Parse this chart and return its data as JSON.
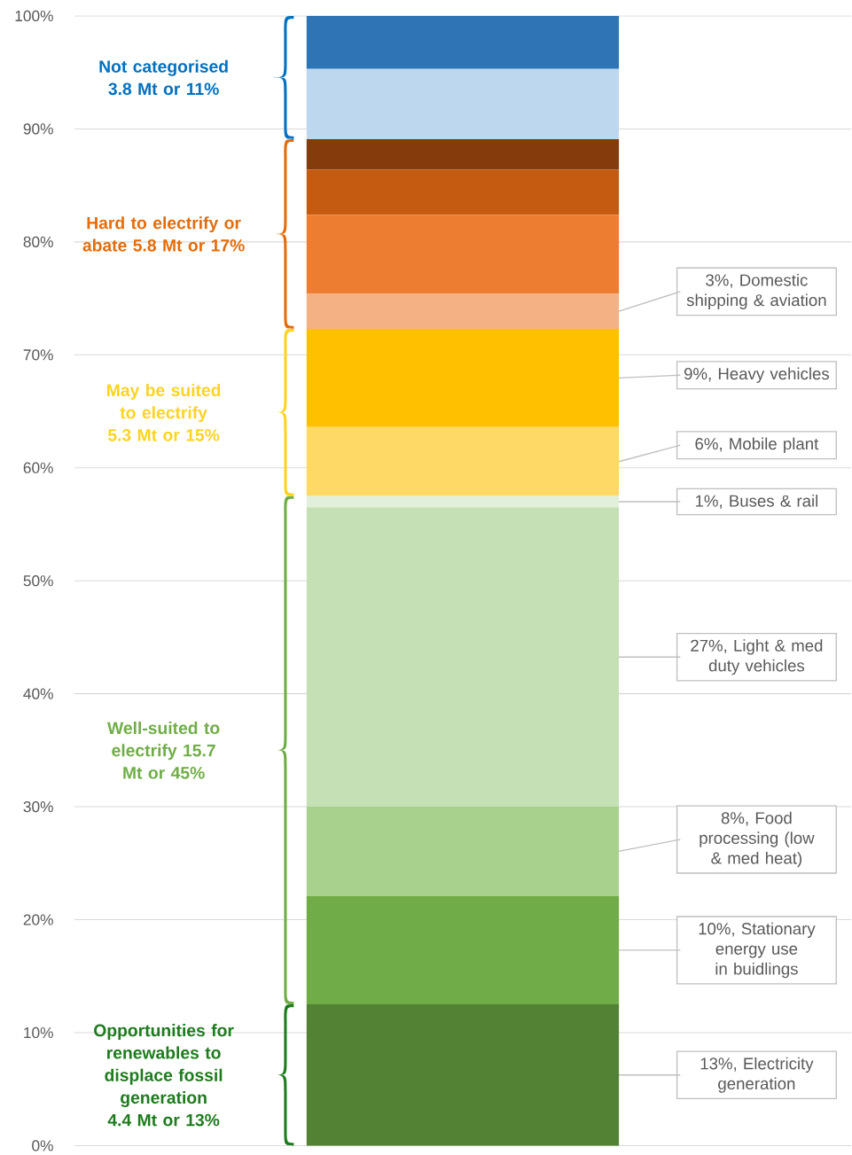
{
  "chart_data": {
    "type": "bar",
    "stacked": true,
    "categories": [
      null
    ],
    "tick_labels": "y",
    "grid": "y",
    "ylim": [
      0,
      100
    ],
    "yticks": [
      {
        "value": 0,
        "label": "0%"
      },
      {
        "value": 10,
        "label": "10%"
      },
      {
        "value": 20,
        "label": "20%"
      },
      {
        "value": 30,
        "label": "30%"
      },
      {
        "value": 40,
        "label": "40%"
      },
      {
        "value": 50,
        "label": "50%"
      },
      {
        "value": 60,
        "label": "60%"
      },
      {
        "value": 70,
        "label": "70%"
      },
      {
        "value": 80,
        "label": "80%"
      },
      {
        "value": 90,
        "label": "90%"
      },
      {
        "value": 100,
        "label": "100%"
      }
    ],
    "series": [
      {
        "name": "13%, Electricity generation",
        "color": "#548235",
        "values": [
          12.5
        ]
      },
      {
        "name": "10%, Stationary energy use in buidlings",
        "color": "#70ad47",
        "values": [
          9.6
        ]
      },
      {
        "name": "8%, Food processing (low & med heat)",
        "color": "#a9d18e",
        "values": [
          7.9
        ]
      },
      {
        "name": "27%, Light & med duty vehicles",
        "color": "#c5e0b4",
        "values": [
          26.5
        ]
      },
      {
        "name": "1%, Buses & rail",
        "color": "#e2efda",
        "values": [
          1.0
        ]
      },
      {
        "name": "6%, Mobile plant",
        "color": "#ffd966",
        "values": [
          6.1
        ]
      },
      {
        "name": "9%, Heavy vehicles",
        "color": "#ffc000",
        "values": [
          8.7
        ]
      },
      {
        "name": "3%, Domestic shipping & aviation",
        "color": "#f4b183",
        "values": [
          3.1
        ]
      },
      {
        "color": "#ed7d31",
        "values": [
          7.0
        ]
      },
      {
        "color": "#c55a11",
        "values": [
          4.0
        ]
      },
      {
        "color": "#843c0c",
        "values": [
          2.7
        ]
      },
      {
        "color": "#bdd7ee",
        "values": [
          6.2
        ]
      },
      {
        "color": "#2e75b6",
        "values": [
          4.7
        ]
      }
    ],
    "annotations": [
      "Opportunities for renewables to displace fossil generation 4.4 Mt or 13%",
      "Well-suited to electrify 15.7 Mt or 45%",
      "May be suited to electrify 5.3 Mt or 15%",
      "Hard to electrify or abate 5.8 Mt or 17%",
      "Not categorised 3.8 Mt or 11%"
    ]
  }
}
